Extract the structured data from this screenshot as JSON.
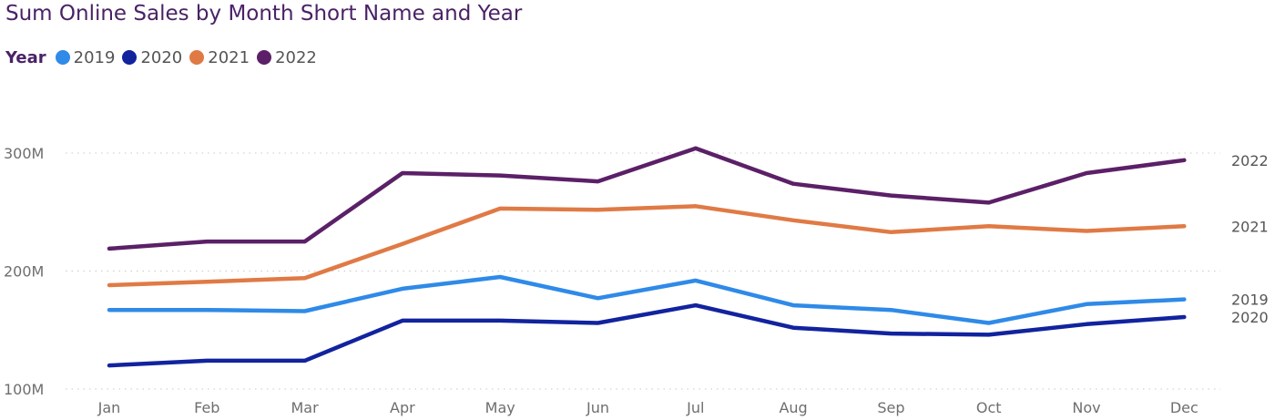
{
  "chart_data": {
    "type": "line",
    "title": "Sum Online Sales by Month Short Name and Year",
    "legend": {
      "title": "Year",
      "placement": "top-left"
    },
    "categories": [
      "Jan",
      "Feb",
      "Mar",
      "Apr",
      "May",
      "Jun",
      "Jul",
      "Aug",
      "Sep",
      "Oct",
      "Nov",
      "Dec"
    ],
    "y_ticks": [
      "100M",
      "200M",
      "300M"
    ],
    "ylim": [
      100,
      300
    ],
    "y_units": "M",
    "grid": true,
    "series": [
      {
        "name": "2019",
        "color": "#2f8ae8",
        "values": [
          167,
          167,
          166,
          185,
          195,
          177,
          192,
          171,
          167,
          156,
          172,
          176
        ]
      },
      {
        "name": "2020",
        "color": "#12239e",
        "values": [
          120,
          124,
          124,
          158,
          158,
          156,
          171,
          152,
          147,
          146,
          155,
          161
        ]
      },
      {
        "name": "2021",
        "color": "#e07a45",
        "values": [
          188,
          191,
          194,
          223,
          253,
          252,
          255,
          243,
          233,
          238,
          234,
          238
        ]
      },
      {
        "name": "2022",
        "color": "#5b2067",
        "values": [
          219,
          225,
          225,
          283,
          281,
          276,
          304,
          274,
          264,
          258,
          283,
          294
        ]
      }
    ]
  }
}
